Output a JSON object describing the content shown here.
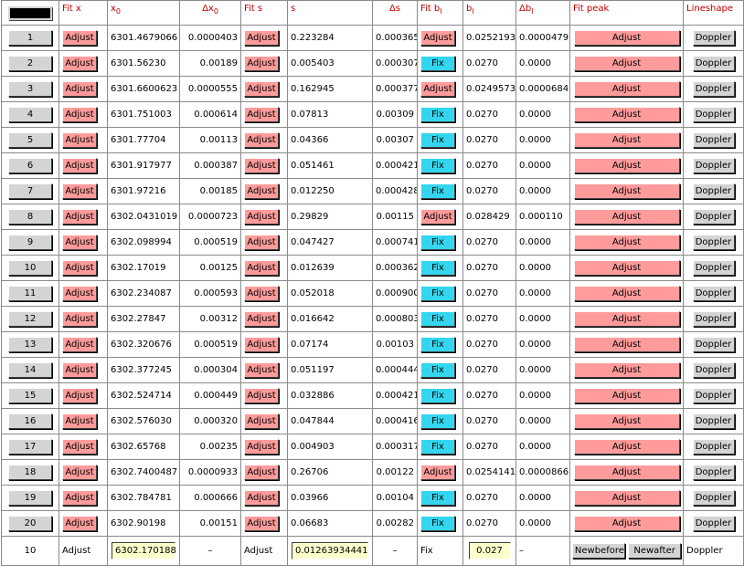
{
  "header": {
    "fit_x": "Fit x",
    "x0": "x",
    "x0_sub": "0",
    "dx0": "Δx",
    "dx0_sub": "0",
    "fit_s": "Fit s",
    "s": "s",
    "ds": "Δs",
    "fit_b": "Fit b",
    "fit_b_sub": "l",
    "b": "b",
    "b_sub": "l",
    "db": "Δb",
    "db_sub": "l",
    "fit_peak": "Fit peak",
    "lineshape": "Lineshape"
  },
  "rows": [
    {
      "id": "1",
      "fitx": "Adjust",
      "x0": "6301.4679066",
      "dx0": "0.0000403",
      "fits": "Adjust",
      "s": "0.223284",
      "ds": "0.000365",
      "fitb": "Adjust",
      "b": "0.0252193",
      "db": "0.0000479",
      "peak": "Adjust",
      "shape": "Doppler"
    },
    {
      "id": "2",
      "fitx": "Adjust",
      "x0": "6301.56230",
      "dx0": "0.00189",
      "fits": "Adjust",
      "s": "0.005403",
      "ds": "0.000307",
      "fitb": "Fix",
      "b": "0.0270",
      "db": "0.0000",
      "peak": "Adjust",
      "shape": "Doppler"
    },
    {
      "id": "3",
      "fitx": "Adjust",
      "x0": "6301.6600623",
      "dx0": "0.0000555",
      "fits": "Adjust",
      "s": "0.162945",
      "ds": "0.000377",
      "fitb": "Adjust",
      "b": "0.0249573",
      "db": "0.0000684",
      "peak": "Adjust",
      "shape": "Doppler"
    },
    {
      "id": "4",
      "fitx": "Adjust",
      "x0": "6301.751003",
      "dx0": "0.000614",
      "fits": "Adjust",
      "s": "0.07813",
      "ds": "0.00309",
      "fitb": "Fix",
      "b": "0.0270",
      "db": "0.0000",
      "peak": "Adjust",
      "shape": "Doppler"
    },
    {
      "id": "5",
      "fitx": "Adjust",
      "x0": "6301.77704",
      "dx0": "0.00113",
      "fits": "Adjust",
      "s": "0.04366",
      "ds": "0.00307",
      "fitb": "Fix",
      "b": "0.0270",
      "db": "0.0000",
      "peak": "Adjust",
      "shape": "Doppler"
    },
    {
      "id": "6",
      "fitx": "Adjust",
      "x0": "6301.917977",
      "dx0": "0.000387",
      "fits": "Adjust",
      "s": "0.051461",
      "ds": "0.000421",
      "fitb": "Fix",
      "b": "0.0270",
      "db": "0.0000",
      "peak": "Adjust",
      "shape": "Doppler"
    },
    {
      "id": "7",
      "fitx": "Adjust",
      "x0": "6301.97216",
      "dx0": "0.00185",
      "fits": "Adjust",
      "s": "0.012250",
      "ds": "0.000428",
      "fitb": "Fix",
      "b": "0.0270",
      "db": "0.0000",
      "peak": "Adjust",
      "shape": "Doppler"
    },
    {
      "id": "8",
      "fitx": "Adjust",
      "x0": "6302.0431019",
      "dx0": "0.0000723",
      "fits": "Adjust",
      "s": "0.29829",
      "ds": "0.00115",
      "fitb": "Adjust",
      "b": "0.028429",
      "db": "0.000110",
      "peak": "Adjust",
      "shape": "Doppler"
    },
    {
      "id": "9",
      "fitx": "Adjust",
      "x0": "6302.098994",
      "dx0": "0.000519",
      "fits": "Adjust",
      "s": "0.047427",
      "ds": "0.000741",
      "fitb": "Fix",
      "b": "0.0270",
      "db": "0.0000",
      "peak": "Adjust",
      "shape": "Doppler"
    },
    {
      "id": "10",
      "fitx": "Adjust",
      "x0": "6302.17019",
      "dx0": "0.00125",
      "fits": "Adjust",
      "s": "0.012639",
      "ds": "0.000362",
      "fitb": "Fix",
      "b": "0.0270",
      "db": "0.0000",
      "peak": "Adjust",
      "shape": "Doppler"
    },
    {
      "id": "11",
      "fitx": "Adjust",
      "x0": "6302.234087",
      "dx0": "0.000593",
      "fits": "Adjust",
      "s": "0.052018",
      "ds": "0.000900",
      "fitb": "Fix",
      "b": "0.0270",
      "db": "0.0000",
      "peak": "Adjust",
      "shape": "Doppler"
    },
    {
      "id": "12",
      "fitx": "Adjust",
      "x0": "6302.27847",
      "dx0": "0.00312",
      "fits": "Adjust",
      "s": "0.016642",
      "ds": "0.000803",
      "fitb": "Fix",
      "b": "0.0270",
      "db": "0.0000",
      "peak": "Adjust",
      "shape": "Doppler"
    },
    {
      "id": "13",
      "fitx": "Adjust",
      "x0": "6302.320676",
      "dx0": "0.000519",
      "fits": "Adjust",
      "s": "0.07174",
      "ds": "0.00103",
      "fitb": "Fix",
      "b": "0.0270",
      "db": "0.0000",
      "peak": "Adjust",
      "shape": "Doppler"
    },
    {
      "id": "14",
      "fitx": "Adjust",
      "x0": "6302.377245",
      "dx0": "0.000304",
      "fits": "Adjust",
      "s": "0.051197",
      "ds": "0.000444",
      "fitb": "Fix",
      "b": "0.0270",
      "db": "0.0000",
      "peak": "Adjust",
      "shape": "Doppler"
    },
    {
      "id": "15",
      "fitx": "Adjust",
      "x0": "6302.524714",
      "dx0": "0.000449",
      "fits": "Adjust",
      "s": "0.032886",
      "ds": "0.000421",
      "fitb": "Fix",
      "b": "0.0270",
      "db": "0.0000",
      "peak": "Adjust",
      "shape": "Doppler"
    },
    {
      "id": "16",
      "fitx": "Adjust",
      "x0": "6302.576030",
      "dx0": "0.000320",
      "fits": "Adjust",
      "s": "0.047844",
      "ds": "0.000416",
      "fitb": "Fix",
      "b": "0.0270",
      "db": "0.0000",
      "peak": "Adjust",
      "shape": "Doppler"
    },
    {
      "id": "17",
      "fitx": "Adjust",
      "x0": "6302.65768",
      "dx0": "0.00235",
      "fits": "Adjust",
      "s": "0.004903",
      "ds": "0.000317",
      "fitb": "Fix",
      "b": "0.0270",
      "db": "0.0000",
      "peak": "Adjust",
      "shape": "Doppler"
    },
    {
      "id": "18",
      "fitx": "Adjust",
      "x0": "6302.7400487",
      "dx0": "0.0000933",
      "fits": "Adjust",
      "s": "0.26706",
      "ds": "0.00122",
      "fitb": "Adjust",
      "b": "0.0254141",
      "db": "0.0000866",
      "peak": "Adjust",
      "shape": "Doppler"
    },
    {
      "id": "19",
      "fitx": "Adjust",
      "x0": "6302.784781",
      "dx0": "0.000666",
      "fits": "Adjust",
      "s": "0.03966",
      "ds": "0.00104",
      "fitb": "Fix",
      "b": "0.0270",
      "db": "0.0000",
      "peak": "Adjust",
      "shape": "Doppler"
    },
    {
      "id": "20",
      "fitx": "Adjust",
      "x0": "6302.90198",
      "dx0": "0.00151",
      "fits": "Adjust",
      "s": "0.06683",
      "ds": "0.00282",
      "fitb": "Fix",
      "b": "0.0270",
      "db": "0.0000",
      "peak": "Adjust",
      "shape": "Doppler"
    }
  ],
  "footer": {
    "id": "10",
    "fitx": "Adjust",
    "x0": "6302.170188",
    "dx0": "–",
    "fits": "Adjust",
    "s": "0.01263934441",
    "ds": "–",
    "fitb": "Fix",
    "b": "0.027",
    "db": "–",
    "newbefore": "Newbefore",
    "newafter": "Newafter",
    "shape": "Doppler"
  },
  "colors": {
    "adjust": "#ff9b9b",
    "fix": "#33d6ee",
    "button_gray": "#d4d4d4",
    "field": "#ffffcc",
    "header_text": "#c00000"
  }
}
